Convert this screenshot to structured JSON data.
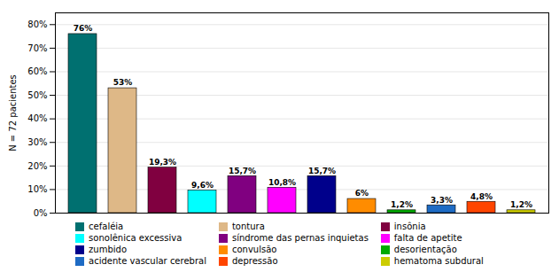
{
  "chart_data": {
    "type": "bar",
    "categories": [
      "cefaléia",
      "tontura",
      "insônia",
      "sonolênica excessiva",
      "síndrome das pernas inquietas",
      "falta de apetite",
      "zumbido",
      "convulsão",
      "desorientação",
      "acidente vascular cerebral",
      "depressão",
      "hematoma subdural"
    ],
    "values": [
      76,
      53,
      19.3,
      9.6,
      15.7,
      10.8,
      15.7,
      6,
      1.2,
      3.3,
      4.8,
      1.2
    ],
    "value_labels": [
      "76%",
      "53%",
      "19,3%",
      "9,6%",
      "15,7%",
      "10,8%",
      "15,7%",
      "6%",
      "1,2%",
      "3,3%",
      "4,8%",
      "1,2%"
    ],
    "colors": [
      "#007070",
      "#DEB887",
      "#800040",
      "#00FFFF",
      "#800080",
      "#FF00FF",
      "#00008B",
      "#FF8C00",
      "#00AA00",
      "#1E6BC4",
      "#FF4500",
      "#CCCC00"
    ],
    "ylabel": "N = 72 pacientes",
    "ylim": [
      0,
      85
    ],
    "yticks": [
      {
        "value": 0,
        "label": "0%"
      },
      {
        "value": 10,
        "label": "10%"
      },
      {
        "value": 20,
        "label": "20%"
      },
      {
        "value": 30,
        "label": "30%"
      },
      {
        "value": 40,
        "label": "40%"
      },
      {
        "value": 50,
        "label": "50%"
      },
      {
        "value": 60,
        "label": "60%"
      },
      {
        "value": 70,
        "label": "70%"
      },
      {
        "value": 80,
        "label": "80%"
      }
    ],
    "grid": true,
    "data_labels": true,
    "tick_labels": "y",
    "legend": "bottom"
  }
}
